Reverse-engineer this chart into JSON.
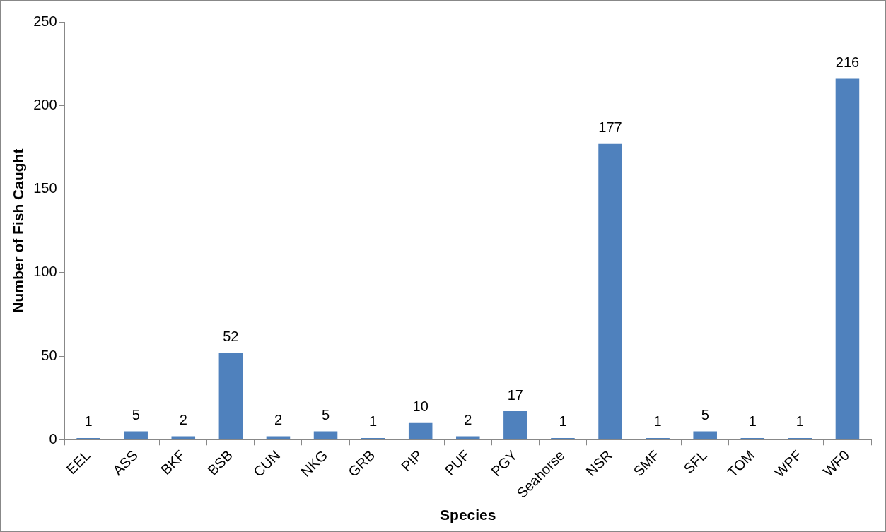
{
  "chart_data": {
    "type": "bar",
    "xlabel": "Species",
    "ylabel": "Number of Fish Caught",
    "categories": [
      "EEL",
      "ASS",
      "BKF",
      "BSB",
      "CUN",
      "NKG",
      "GRB",
      "PIP",
      "PUF",
      "PGY",
      "Seahorse",
      "NSR",
      "SMF",
      "SFL",
      "TOM",
      "WPF",
      "WF0"
    ],
    "values": [
      1,
      5,
      2,
      52,
      2,
      5,
      1,
      10,
      2,
      17,
      1,
      177,
      1,
      5,
      1,
      1,
      216
    ],
    "color": "#4f81bd",
    "ylim": [
      0,
      250
    ],
    "yticks": [
      0,
      50,
      100,
      150,
      200,
      250
    ],
    "grid": false,
    "legend": false,
    "data_labels": true
  }
}
